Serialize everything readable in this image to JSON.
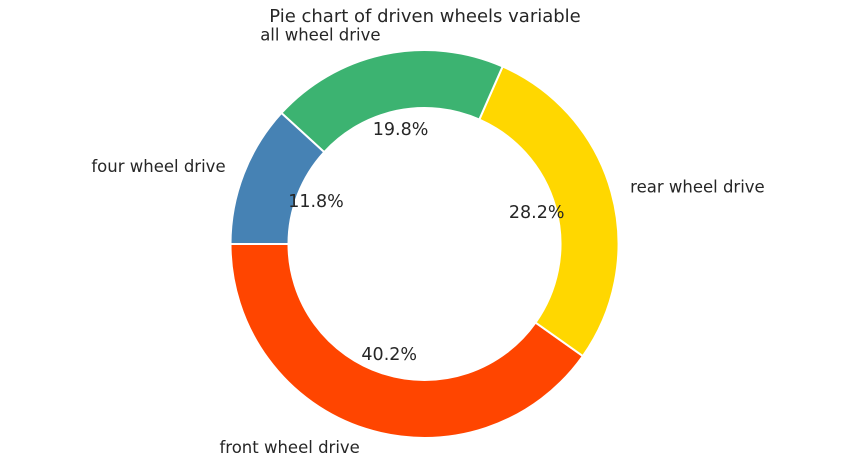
{
  "chart_data": {
    "type": "pie",
    "title": "Pie chart of driven wheels variable",
    "donut": true,
    "slices": [
      {
        "label": "front wheel drive",
        "value": 40.2,
        "pct_label": "40.2%",
        "color": "#ff4500"
      },
      {
        "label": "rear wheel drive",
        "value": 28.2,
        "pct_label": "28.2%",
        "color": "#ffd700"
      },
      {
        "label": "all wheel drive",
        "value": 19.8,
        "pct_label": "19.8%",
        "color": "#3cb371"
      },
      {
        "label": "four wheel drive",
        "value": 11.8,
        "pct_label": "11.8%",
        "color": "#4682b4"
      }
    ],
    "wedge_edge_color": "#ffffff"
  }
}
